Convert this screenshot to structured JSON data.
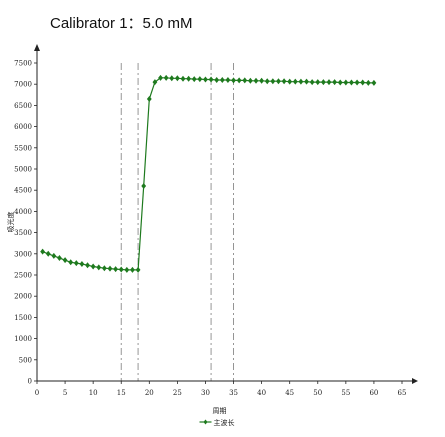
{
  "title": "Calibrator 1：5.0 mM",
  "chart_data": {
    "type": "line",
    "title": "Calibrator 1：5.0 mM",
    "xlabel": "周期",
    "ylabel": "吸光度",
    "xlim": [
      0,
      65
    ],
    "ylim": [
      0,
      7500
    ],
    "xticks": [
      "0",
      "5",
      "10",
      "15",
      "20",
      "25",
      "30",
      "35",
      "40",
      "45",
      "50",
      "55",
      "60",
      "65"
    ],
    "yticks": [
      "0",
      "500",
      "1000",
      "1500",
      "2000",
      "2500",
      "3000",
      "3500",
      "4000",
      "4500",
      "5000",
      "5500",
      "6000",
      "6500",
      "7000",
      "7500"
    ],
    "vlines": [
      15,
      18,
      31,
      35
    ],
    "legend": {
      "position": "bottom-center",
      "entries": [
        "主波长"
      ]
    },
    "series": [
      {
        "name": "主波长",
        "color": "#1e7a1e",
        "x": [
          1,
          2,
          3,
          4,
          5,
          6,
          7,
          8,
          9,
          10,
          11,
          12,
          13,
          14,
          15,
          16,
          17,
          18,
          19,
          20,
          21,
          22,
          23,
          24,
          25,
          26,
          27,
          28,
          29,
          30,
          31,
          32,
          33,
          34,
          35,
          36,
          37,
          38,
          39,
          40,
          41,
          42,
          43,
          44,
          45,
          46,
          47,
          48,
          49,
          50,
          51,
          52,
          53,
          54,
          55,
          56,
          57,
          58,
          59,
          60
        ],
        "y": [
          3050,
          3000,
          2950,
          2900,
          2850,
          2800,
          2780,
          2760,
          2730,
          2700,
          2680,
          2660,
          2650,
          2640,
          2630,
          2620,
          2620,
          2620,
          4600,
          6650,
          7050,
          7150,
          7150,
          7140,
          7140,
          7130,
          7130,
          7120,
          7120,
          7110,
          7110,
          7100,
          7100,
          7100,
          7090,
          7090,
          7090,
          7080,
          7080,
          7080,
          7070,
          7070,
          7070,
          7070,
          7060,
          7060,
          7060,
          7060,
          7050,
          7050,
          7050,
          7050,
          7050,
          7040,
          7040,
          7040,
          7040,
          7040,
          7030,
          7030
        ]
      }
    ]
  }
}
